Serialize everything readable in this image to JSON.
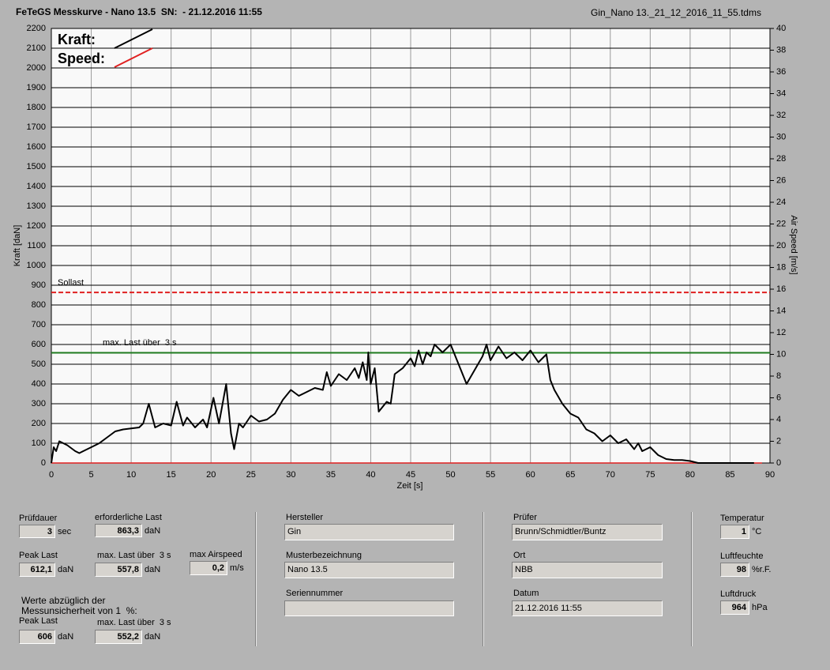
{
  "header": {
    "title": "FeTeGS Messkurve - Nano 13.5  SN:  - 21.12.2016 11:55",
    "file": "Gin_Nano 13._21_12_2016_11_55.tdms"
  },
  "chart_data": {
    "type": "line",
    "x_label": "Zeit [s]",
    "y_label": "Kraft [daN]",
    "y2_label": "Air Speed [m/s]",
    "xlim": [
      0,
      90
    ],
    "xticks": [
      0,
      5,
      10,
      15,
      20,
      25,
      30,
      35,
      40,
      45,
      50,
      55,
      60,
      65,
      70,
      75,
      80,
      85,
      90
    ],
    "ylim": [
      0,
      2200
    ],
    "yticks": [
      0,
      100,
      200,
      300,
      400,
      500,
      600,
      700,
      800,
      900,
      1000,
      1100,
      1200,
      1300,
      1400,
      1500,
      1600,
      1700,
      1800,
      1900,
      2000,
      2100,
      2200
    ],
    "y2lim": [
      0,
      40
    ],
    "y2ticks": [
      0,
      2,
      4,
      6,
      8,
      10,
      12,
      14,
      16,
      18,
      20,
      22,
      24,
      26,
      28,
      30,
      32,
      34,
      36,
      38,
      40
    ],
    "grid": true,
    "series": [
      {
        "name": "Kraft:",
        "color": "#000000",
        "x": [
          0,
          0.3,
          0.6,
          1,
          2,
          3,
          3.5,
          4,
          5,
          6,
          7,
          8,
          9,
          10,
          11,
          11.5,
          12.2,
          13,
          14,
          15,
          15.7,
          16.5,
          17,
          18,
          19,
          19.5,
          20.3,
          21,
          21.9,
          22.5,
          22.9,
          23.5,
          24,
          25,
          26,
          27,
          28,
          29,
          30,
          31,
          32,
          33,
          34,
          34.5,
          35,
          36,
          37,
          38,
          38.5,
          39,
          39.5,
          39.7,
          40,
          40.5,
          41,
          42,
          42.5,
          43,
          44,
          45,
          45.5,
          46,
          46.5,
          47,
          47.5,
          48,
          49,
          50,
          51,
          52,
          53,
          54,
          54.5,
          55,
          56,
          57,
          58,
          59,
          60,
          61,
          62,
          62.5,
          63,
          64,
          65,
          66,
          67,
          68,
          69,
          70,
          71,
          72,
          73,
          73.5,
          74,
          75,
          76,
          77,
          78,
          79,
          80,
          81,
          82,
          88
        ],
        "values": [
          0,
          80,
          60,
          110,
          90,
          60,
          50,
          60,
          80,
          100,
          130,
          160,
          170,
          175,
          180,
          200,
          300,
          180,
          200,
          190,
          310,
          190,
          230,
          180,
          220,
          180,
          330,
          200,
          400,
          150,
          70,
          200,
          180,
          240,
          210,
          220,
          250,
          320,
          370,
          340,
          360,
          380,
          370,
          460,
          390,
          450,
          420,
          480,
          430,
          510,
          420,
          560,
          400,
          480,
          260,
          310,
          300,
          450,
          480,
          530,
          490,
          570,
          500,
          560,
          540,
          600,
          560,
          600,
          500,
          400,
          470,
          540,
          600,
          520,
          590,
          530,
          560,
          520,
          570,
          510,
          550,
          420,
          370,
          300,
          250,
          230,
          170,
          150,
          110,
          140,
          100,
          120,
          70,
          100,
          60,
          80,
          40,
          20,
          15,
          15,
          10,
          0,
          0,
          0
        ]
      },
      {
        "name": "Speed:",
        "color": "#e02020",
        "axis": "y2",
        "x": [
          0,
          89
        ],
        "values": [
          0,
          0
        ]
      }
    ],
    "reference_lines": [
      {
        "label": "Sollast",
        "value": 863.3,
        "color": "#e02020",
        "dashed": true
      },
      {
        "label": "max. Last über  3 s",
        "value": 557.8,
        "color": "#1f7a1f",
        "dashed": false
      }
    ]
  },
  "panel": {
    "pruefdauer": {
      "label": "Prüfdauer",
      "value": "3",
      "unit": "sec"
    },
    "erforderliche_last": {
      "label": "erforderliche Last",
      "value": "863,3",
      "unit": "daN"
    },
    "peak_last": {
      "label": "Peak Last",
      "value": "612,1",
      "unit": "daN"
    },
    "max_last": {
      "label": "max. Last über  3 s",
      "value": "557,8",
      "unit": "daN"
    },
    "max_airspeed": {
      "label": "max Airspeed",
      "value": "0,2",
      "unit": "m/s"
    },
    "note": [
      "Werte abzüglich der",
      "Messunsicherheit von 1  %:"
    ],
    "peak_last_korr": {
      "label": "Peak Last",
      "value": "606",
      "unit": "daN"
    },
    "max_last_korr": {
      "label": "max. Last über  3 s",
      "value": "552,2",
      "unit": "daN"
    },
    "hersteller": {
      "label": "Hersteller",
      "value": "Gin"
    },
    "musterbezeichnung": {
      "label": "Musterbezeichnung",
      "value": "Nano 13.5"
    },
    "seriennummer": {
      "label": "Seriennummer"
    },
    "pruefer": {
      "label": "Prüfer",
      "value": "Brunn/Schmidtler/Buntz"
    },
    "ort": {
      "label": "Ort",
      "value": "NBB"
    },
    "datum": {
      "label": "Datum",
      "value": "21.12.2016 11:55"
    },
    "temperatur": {
      "label": "Temperatur",
      "value": "1",
      "unit": "°C"
    },
    "luftfeuchte": {
      "label": "Luftfeuchte",
      "value": "98",
      "unit": "%r.F."
    },
    "luftdruck": {
      "label": "Luftdruck",
      "value": "964",
      "unit": "hPa"
    }
  }
}
